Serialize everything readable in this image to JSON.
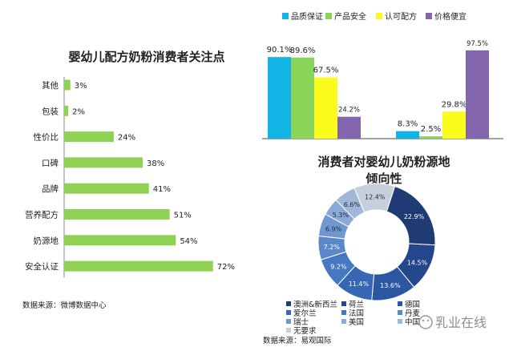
{
  "colors": {
    "left_bar": "#8fd155",
    "quality": "#12b4e6",
    "safety": "#8bd45a",
    "certified": "#fbfb1c",
    "cheap": "#8365ad",
    "donut": [
      "#1f3b73",
      "#23478a",
      "#2b57a2",
      "#3667b4",
      "#4678c2",
      "#5a88c8",
      "#7097cf",
      "#8aa9d6",
      "#a2b7d8",
      "#c7cfdc"
    ]
  },
  "watermark": "乳业在线",
  "chart_data": [
    {
      "type": "bar",
      "orientation": "horizontal",
      "title": "婴幼儿配方奶粉消费者关注点",
      "categories": [
        "其他",
        "包装",
        "性价比",
        "口碑",
        "品牌",
        "营养配方",
        "奶源地",
        "安全认证"
      ],
      "values": [
        3,
        2,
        24,
        38,
        41,
        51,
        54,
        72
      ],
      "value_labels": [
        "3%",
        "2%",
        "24%",
        "38%",
        "41%",
        "51%",
        "54%",
        "72%"
      ],
      "xlim": [
        0,
        100
      ],
      "grid": false,
      "source": "数据来源：微博数据中心"
    },
    {
      "type": "bar",
      "orientation": "vertical",
      "categories": [
        "",
        ""
      ],
      "series": [
        {
          "name": "品质保证",
          "values": [
            90.1,
            8.3
          ],
          "labels": [
            "90.1%",
            "8.3%"
          ]
        },
        {
          "name": "产品安全",
          "values": [
            89.6,
            2.5
          ],
          "labels": [
            "89.6%",
            "2.5%"
          ]
        },
        {
          "name": "认可配方",
          "values": [
            67.5,
            29.8
          ],
          "labels": [
            "67.5%",
            "29.8%"
          ]
        },
        {
          "name": "价格便宜",
          "values": [
            24.2,
            97.5
          ],
          "labels": [
            "24.2%",
            "97.5%"
          ]
        }
      ],
      "ylim": [
        0,
        100
      ],
      "legend": "top",
      "grid": false
    },
    {
      "type": "pie",
      "donut": true,
      "title_lines": [
        "消费者对婴幼儿奶粉源地",
        "倾向性"
      ],
      "slices": [
        {
          "label": "澳洲&新西兰",
          "value": 22.9,
          "text": "22.9%"
        },
        {
          "label": "荷兰",
          "value": 14.5,
          "text": "14.5%"
        },
        {
          "label": "德国",
          "value": 13.6,
          "text": "13.6%"
        },
        {
          "label": "爱尔兰",
          "value": 11.4,
          "text": "11.4%"
        },
        {
          "label": "法国",
          "value": 9.2,
          "text": "9.2%"
        },
        {
          "label": "丹麦",
          "value": 7.2,
          "text": "7.2%"
        },
        {
          "label": "瑞士",
          "value": 6.9,
          "text": "6.9%"
        },
        {
          "label": "美国",
          "value": 5.3,
          "text": "5.3%"
        },
        {
          "label": "中国",
          "value": 6.6,
          "text": "6.6%"
        },
        {
          "label": "无要求",
          "value": 12.4,
          "text": "12.4%"
        }
      ],
      "legend": "bottom",
      "source": "数据来源：易观国际"
    }
  ]
}
